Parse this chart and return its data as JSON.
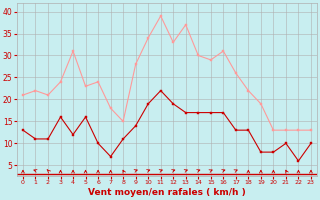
{
  "hours": [
    0,
    1,
    2,
    3,
    4,
    5,
    6,
    7,
    8,
    9,
    10,
    11,
    12,
    13,
    14,
    15,
    16,
    17,
    18,
    19,
    20,
    21,
    22,
    23
  ],
  "mean_wind": [
    13,
    11,
    11,
    16,
    12,
    16,
    10,
    7,
    11,
    14,
    19,
    22,
    19,
    17,
    17,
    17,
    17,
    13,
    13,
    8,
    8,
    10,
    6,
    10
  ],
  "gust_wind": [
    21,
    22,
    21,
    24,
    31,
    23,
    24,
    18,
    15,
    28,
    34,
    39,
    33,
    37,
    30,
    29,
    31,
    26,
    22,
    19,
    13,
    13,
    13,
    13
  ],
  "bg_color": "#c8eef0",
  "grid_color": "#b0b0b0",
  "mean_color": "#cc0000",
  "gust_color": "#ff9999",
  "xlabel": "Vent moyen/en rafales ( km/h )",
  "xlabel_color": "#cc0000",
  "yticks": [
    5,
    10,
    15,
    20,
    25,
    30,
    35,
    40
  ],
  "ylim": [
    2.5,
    42
  ],
  "xlim": [
    -0.5,
    23.5
  ],
  "arrow_angles": [
    90,
    135,
    110,
    90,
    90,
    90,
    90,
    90,
    100,
    45,
    45,
    45,
    45,
    45,
    45,
    50,
    45,
    50,
    90,
    90,
    90,
    100,
    90,
    90
  ]
}
